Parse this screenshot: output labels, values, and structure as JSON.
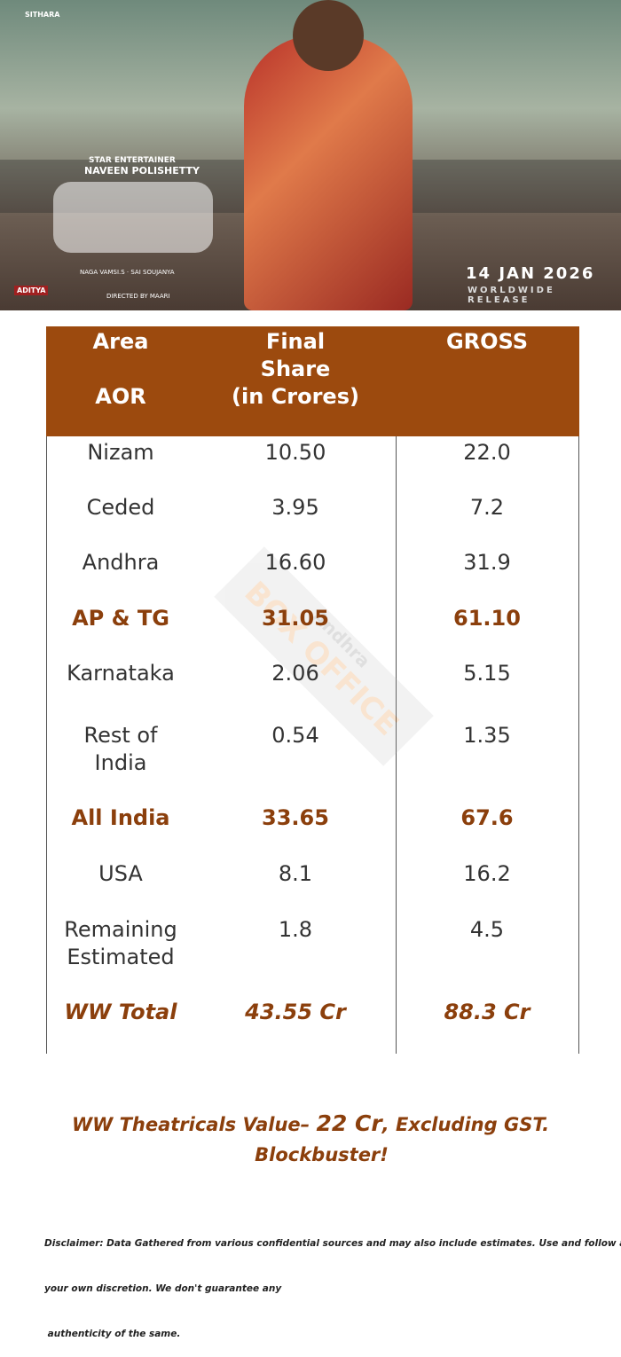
{
  "poster": {
    "studio": "SITHARA",
    "tagline": "STAR ENTERTAINER",
    "actor": "NAVEEN POLISHETTY",
    "date": "14 JAN 2026",
    "release": "WORLDWIDE RELEASE",
    "producer": "NAGA VAMSI.S  ·  SAI SOUJANYA",
    "director": "DIRECTED BY MAARI",
    "logo": "ADITYA"
  },
  "table": {
    "header": [
      [
        "Area",
        "AOR"
      ],
      [
        "Final",
        "Share",
        "(in Crores)"
      ],
      [
        "GROSS"
      ]
    ],
    "rows": [
      {
        "cells": [
          [
            "Nizam"
          ],
          "10.50",
          "22.0"
        ],
        "emphasis": "normal"
      },
      {
        "cells": [
          [
            "Ceded"
          ],
          "3.95",
          "7.2"
        ],
        "emphasis": "normal"
      },
      {
        "cells": [
          [
            "Andhra"
          ],
          "16.60",
          "31.9"
        ],
        "emphasis": "normal"
      },
      {
        "cells": [
          [
            "AP & TG"
          ],
          "31.05",
          "61.10"
        ],
        "emphasis": "bold"
      },
      {
        "cells": [
          [
            "Karnataka"
          ],
          "2.06",
          "5.15"
        ],
        "emphasis": "normal"
      },
      {
        "cells": [
          [
            "Rest of",
            "India"
          ],
          "0.54",
          "1.35"
        ],
        "emphasis": "normal"
      },
      {
        "cells": [
          [
            "All India"
          ],
          "33.65",
          "67.6"
        ],
        "emphasis": "bold"
      },
      {
        "cells": [
          [
            "USA"
          ],
          "8.1",
          "16.2"
        ],
        "emphasis": "normal"
      },
      {
        "cells": [
          [
            "Remaining",
            "Estimated"
          ],
          "1.8",
          "4.5"
        ],
        "emphasis": "normal"
      },
      {
        "cells": [
          [
            "WW Total"
          ],
          "43.55 Cr",
          "88.3 Cr"
        ],
        "emphasis": "bold-italic"
      }
    ]
  },
  "watermark": [
    "Andhra",
    "BOX OFFICE"
  ],
  "footer": {
    "line1": [
      "WW Theatricals Value– ",
      "22 Cr",
      ", Excluding GST."
    ],
    "line2": "Blockbuster!",
    "disclaimer": [
      "Disclaimer: Data Gathered from various confidential sources and may also include estimates. Use and follow at",
      "your own discretion. We don't guarantee any",
      " authenticity of the same."
    ]
  }
}
